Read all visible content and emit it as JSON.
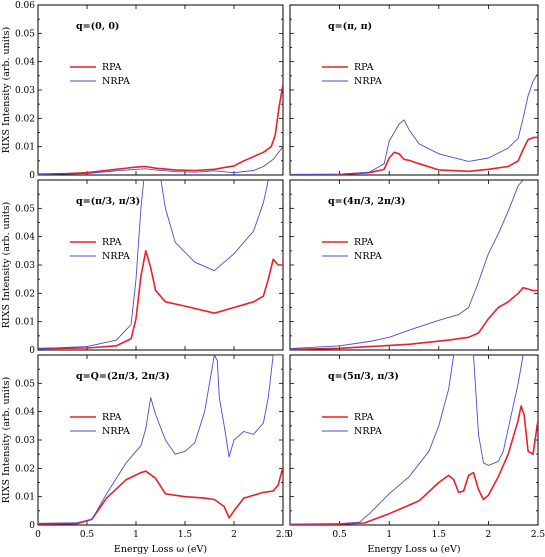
{
  "chart_data": [
    {
      "type": "line",
      "panel_label": "q=(0, 0)",
      "xlim": [
        0,
        2.5
      ],
      "ylim": [
        0,
        0.06
      ],
      "yticks": [
        "0",
        "0.01",
        "0.02",
        "0.03",
        "0.04",
        "0.05",
        "0.06"
      ],
      "series": [
        {
          "name": "RPA",
          "color": "#e8212b",
          "x": [
            0,
            0.3,
            0.5,
            0.6,
            0.8,
            1.0,
            1.1,
            1.2,
            1.4,
            1.6,
            1.8,
            1.9,
            2.0,
            2.1,
            2.2,
            2.3,
            2.38,
            2.42,
            2.46,
            2.5
          ],
          "y": [
            0.0003,
            0.0005,
            0.0008,
            0.0012,
            0.002,
            0.0028,
            0.003,
            0.0024,
            0.0018,
            0.0016,
            0.002,
            0.0026,
            0.0032,
            0.005,
            0.0065,
            0.008,
            0.01,
            0.014,
            0.024,
            0.032
          ]
        },
        {
          "name": "NRPA",
          "color": "#4c4ccf",
          "x": [
            0,
            0.5,
            0.8,
            1.0,
            1.1,
            1.2,
            1.4,
            1.6,
            1.8,
            2.0,
            2.2,
            2.3,
            2.4,
            2.5
          ],
          "y": [
            0.0002,
            0.0005,
            0.0015,
            0.002,
            0.0022,
            0.0018,
            0.0012,
            0.001,
            0.0015,
            0.0008,
            0.0016,
            0.003,
            0.0055,
            0.01
          ]
        }
      ]
    },
    {
      "type": "line",
      "panel_label": "q=(π, π)",
      "xlim": [
        0,
        2.5
      ],
      "ylim": [
        0,
        0.06
      ],
      "series": [
        {
          "name": "RPA",
          "color": "#e8212b",
          "x": [
            0,
            0.5,
            0.8,
            0.95,
            1.0,
            1.05,
            1.1,
            1.15,
            1.2,
            1.3,
            1.5,
            1.8,
            2.0,
            2.2,
            2.3,
            2.35,
            2.4,
            2.45,
            2.5
          ],
          "y": [
            0.0001,
            0.0002,
            0.0008,
            0.002,
            0.006,
            0.008,
            0.0075,
            0.0055,
            0.0052,
            0.004,
            0.0018,
            0.0013,
            0.002,
            0.003,
            0.005,
            0.009,
            0.0125,
            0.0132,
            0.0133
          ]
        },
        {
          "name": "NRPA",
          "color": "#4c4ccf",
          "x": [
            0,
            0.5,
            0.8,
            0.95,
            1.0,
            1.05,
            1.1,
            1.15,
            1.2,
            1.3,
            1.5,
            1.8,
            2.0,
            2.2,
            2.3,
            2.35,
            2.4,
            2.45,
            2.5
          ],
          "y": [
            0.0001,
            0.0003,
            0.001,
            0.004,
            0.012,
            0.015,
            0.018,
            0.0195,
            0.016,
            0.011,
            0.0075,
            0.0048,
            0.006,
            0.0095,
            0.013,
            0.02,
            0.028,
            0.033,
            0.036
          ]
        }
      ]
    },
    {
      "type": "line",
      "panel_label": "q=(π/3, π/3)",
      "xlim": [
        0,
        2.5
      ],
      "ylim": [
        0,
        0.06
      ],
      "yticks": [
        "0",
        "0.01",
        "0.02",
        "0.03",
        "0.04",
        "0.05"
      ],
      "series": [
        {
          "name": "RPA",
          "color": "#e8212b",
          "x": [
            0,
            0.5,
            0.8,
            0.95,
            1.0,
            1.05,
            1.1,
            1.15,
            1.2,
            1.3,
            1.5,
            1.8,
            2.0,
            2.2,
            2.3,
            2.35,
            2.4,
            2.45,
            2.5
          ],
          "y": [
            0.0005,
            0.0007,
            0.0015,
            0.004,
            0.011,
            0.026,
            0.035,
            0.029,
            0.021,
            0.017,
            0.0155,
            0.013,
            0.015,
            0.017,
            0.019,
            0.025,
            0.032,
            0.03,
            0.03
          ]
        },
        {
          "name": "NRPA",
          "color": "#4c4ccf",
          "x": [
            0,
            0.5,
            0.8,
            0.95,
            1.0,
            1.05,
            1.08,
            1.1,
            1.25,
            1.3,
            1.4,
            1.6,
            1.8,
            2.0,
            2.2,
            2.3,
            2.35
          ],
          "y": [
            0.0005,
            0.0012,
            0.0035,
            0.009,
            0.025,
            0.05,
            0.06,
            0.061,
            0.061,
            0.05,
            0.038,
            0.031,
            0.028,
            0.034,
            0.042,
            0.052,
            0.06
          ]
        }
      ]
    },
    {
      "type": "line",
      "panel_label": "q=(4π/3, 2π/3)",
      "xlim": [
        0,
        2.5
      ],
      "ylim": [
        0,
        0.06
      ],
      "series": [
        {
          "name": "RPA",
          "color": "#e8212b",
          "x": [
            0,
            0.5,
            0.8,
            1.2,
            1.6,
            1.8,
            1.9,
            2.0,
            2.1,
            2.2,
            2.3,
            2.35,
            2.4,
            2.45,
            2.5
          ],
          "y": [
            0.0002,
            0.0006,
            0.0012,
            0.002,
            0.0035,
            0.0045,
            0.006,
            0.011,
            0.015,
            0.017,
            0.02,
            0.022,
            0.0215,
            0.021,
            0.021
          ]
        },
        {
          "name": "NRPA",
          "color": "#4c4ccf",
          "x": [
            0,
            0.5,
            0.8,
            1.0,
            1.2,
            1.5,
            1.7,
            1.8,
            1.9,
            2.0,
            2.1,
            2.2,
            2.3,
            2.35
          ],
          "y": [
            0.0005,
            0.0015,
            0.003,
            0.0045,
            0.007,
            0.0105,
            0.0125,
            0.015,
            0.024,
            0.034,
            0.041,
            0.049,
            0.058,
            0.06
          ]
        }
      ]
    },
    {
      "type": "line",
      "panel_label": "q=Q=(2π/3, 2π/3)",
      "xlim": [
        0,
        2.5
      ],
      "ylim": [
        0,
        0.06
      ],
      "yticks": [
        "0",
        "0.01",
        "0.02",
        "0.03",
        "0.04",
        "0.05"
      ],
      "series": [
        {
          "name": "RPA",
          "color": "#e8212b",
          "x": [
            0,
            0.4,
            0.55,
            0.7,
            0.9,
            1.05,
            1.1,
            1.2,
            1.3,
            1.5,
            1.7,
            1.8,
            1.9,
            1.95,
            2.0,
            2.1,
            2.3,
            2.4,
            2.45,
            2.5
          ],
          "y": [
            0.0003,
            0.0005,
            0.002,
            0.0095,
            0.016,
            0.0185,
            0.019,
            0.0165,
            0.011,
            0.01,
            0.0095,
            0.009,
            0.0065,
            0.0025,
            0.005,
            0.0095,
            0.0115,
            0.012,
            0.014,
            0.0205
          ]
        },
        {
          "name": "NRPA",
          "color": "#4c4ccf",
          "x": [
            0,
            0.4,
            0.55,
            0.7,
            0.9,
            1.05,
            1.1,
            1.15,
            1.2,
            1.3,
            1.4,
            1.5,
            1.6,
            1.7,
            1.75,
            1.8,
            1.83,
            1.85,
            1.9,
            1.95,
            2.0,
            2.1,
            2.2,
            2.3,
            2.35,
            2.4,
            2.45,
            2.5
          ],
          "y": [
            0.0006,
            0.0008,
            0.002,
            0.011,
            0.022,
            0.028,
            0.034,
            0.045,
            0.039,
            0.03,
            0.025,
            0.026,
            0.029,
            0.04,
            0.05,
            0.06,
            0.058,
            0.045,
            0.035,
            0.024,
            0.03,
            0.033,
            0.032,
            0.036,
            0.045,
            0.06,
            0.06,
            0.06
          ]
        }
      ]
    },
    {
      "type": "line",
      "panel_label": "q=(5π/3, π/3)",
      "xlim": [
        0,
        2.5
      ],
      "ylim": [
        0,
        0.06
      ],
      "series": [
        {
          "name": "RPA",
          "color": "#e8212b",
          "x": [
            0,
            0.5,
            0.75,
            1.0,
            1.3,
            1.5,
            1.6,
            1.65,
            1.7,
            1.75,
            1.8,
            1.85,
            1.9,
            1.95,
            2.0,
            2.1,
            2.2,
            2.3,
            2.33,
            2.36,
            2.4,
            2.45,
            2.5
          ],
          "y": [
            0.0001,
            0.0003,
            0.0007,
            0.004,
            0.0085,
            0.015,
            0.0175,
            0.016,
            0.0115,
            0.012,
            0.0175,
            0.0185,
            0.0125,
            0.009,
            0.0105,
            0.017,
            0.025,
            0.037,
            0.042,
            0.039,
            0.026,
            0.025,
            0.037
          ]
        },
        {
          "name": "NRPA",
          "color": "#4c4ccf",
          "x": [
            0,
            0.5,
            0.7,
            0.8,
            1.0,
            1.2,
            1.4,
            1.5,
            1.6,
            1.65,
            1.7,
            1.85,
            1.9,
            1.95,
            2.0,
            2.1,
            2.15,
            2.2,
            2.3,
            2.35
          ],
          "y": [
            0.0003,
            0.0005,
            0.001,
            0.004,
            0.011,
            0.017,
            0.026,
            0.035,
            0.048,
            0.06,
            0.06,
            0.06,
            0.032,
            0.022,
            0.021,
            0.0225,
            0.026,
            0.034,
            0.05,
            0.06
          ]
        }
      ]
    }
  ],
  "axes": {
    "ylabel": "RIXS Intensity (arb. units)",
    "xlabel": "Energy Loss ω (eV)",
    "xticks": [
      "0",
      "0.5",
      "1",
      "1.5",
      "2",
      "2.5"
    ]
  },
  "legend": {
    "rpa": "RPA",
    "nrpa": "NRPA"
  }
}
